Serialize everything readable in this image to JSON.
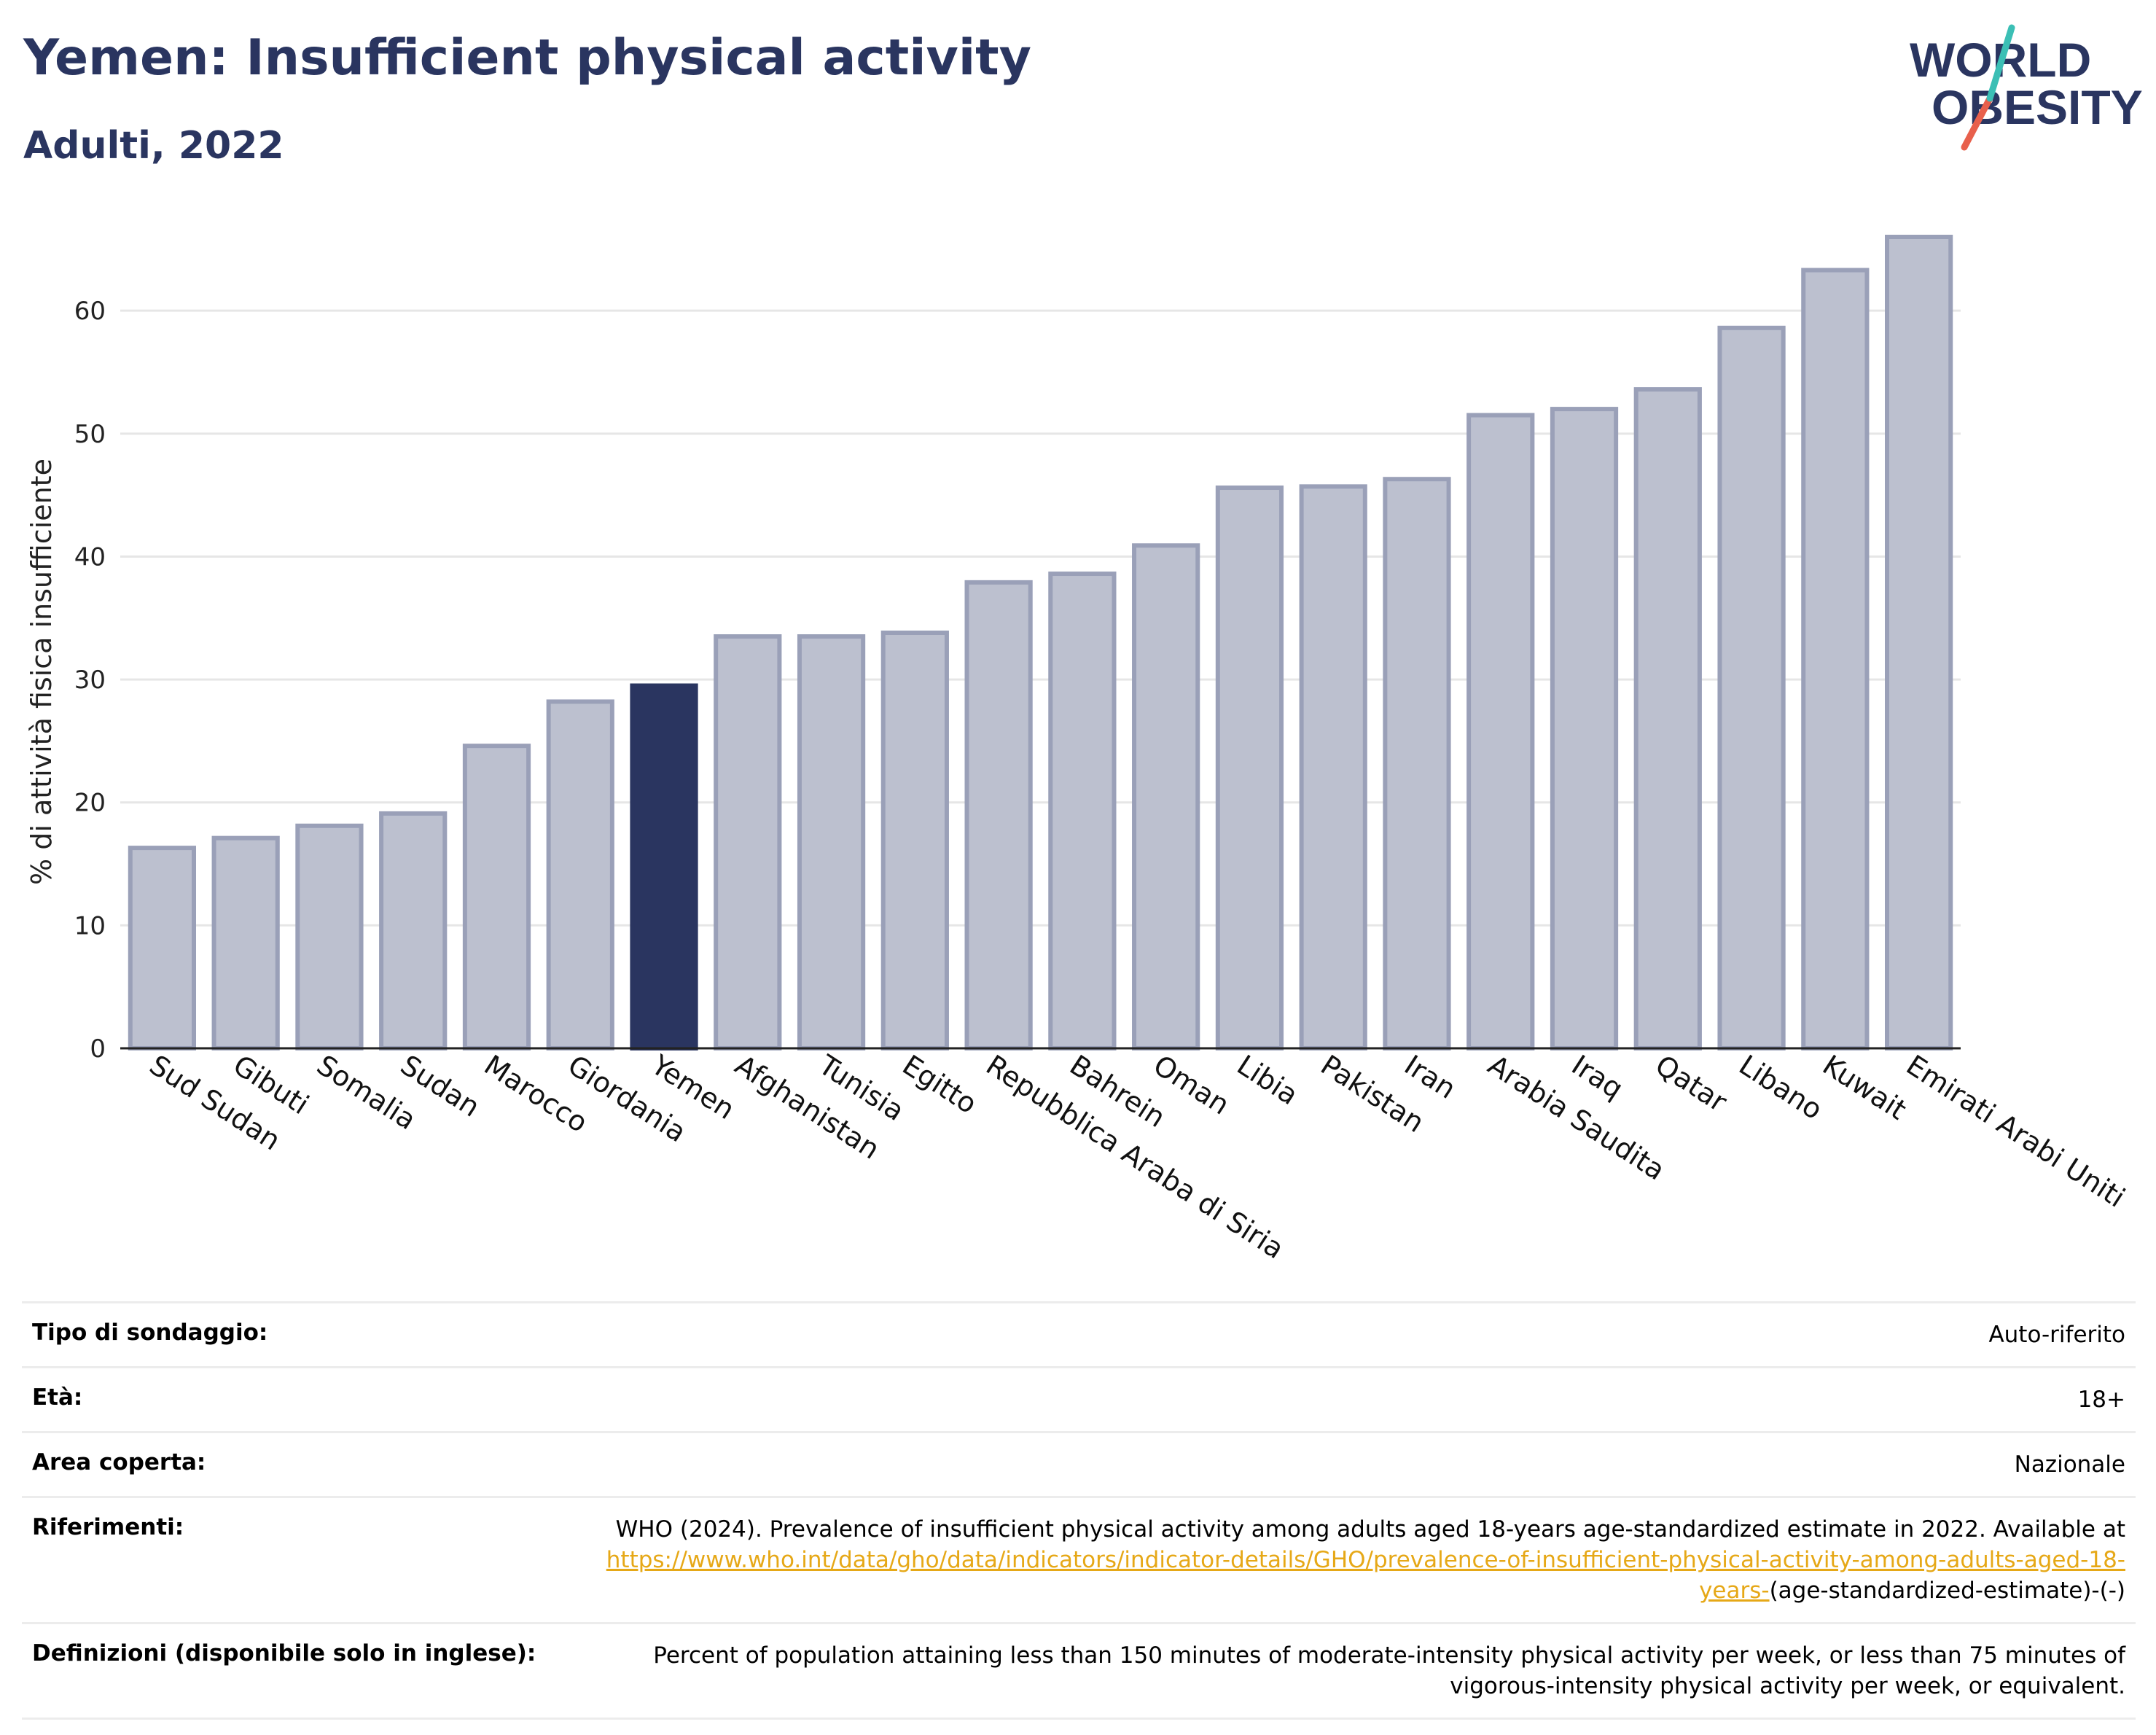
{
  "header": {
    "title": "Yemen: Insufficient physical activity",
    "subtitle": "Adulti, 2022"
  },
  "logo": {
    "line1": "WORLD",
    "line2": "OBESITY",
    "colors": {
      "text": "#2a3560",
      "slash_red": "#e8604c",
      "slash_teal": "#3bbfb5"
    }
  },
  "colors": {
    "highlight": "#2a3560",
    "bar": "#bcc0cf",
    "bar_edge": "#9aa0b8",
    "grid": "#e6e6e6",
    "link": "#e6a817"
  },
  "chart_data": {
    "type": "bar",
    "ylabel": "% di attività fisica insufficiente",
    "xlabel": "",
    "ylim": [
      0,
      66
    ],
    "yticks": [
      0,
      10,
      20,
      30,
      40,
      50,
      60
    ],
    "grid": true,
    "highlight": "Yemen",
    "categories": [
      "Sud Sudan",
      "Gibuti",
      "Somalia",
      "Sudan",
      "Marocco",
      "Giordania",
      "Yemen",
      "Afghanistan",
      "Tunisia",
      "Egitto",
      "Repubblica Araba di Siria",
      "Bahrein",
      "Oman",
      "Libia",
      "Pakistan",
      "Iran",
      "Arabia Saudita",
      "Iraq",
      "Qatar",
      "Libano",
      "Kuwait",
      "Emirati Arabi Uniti"
    ],
    "values": [
      16.3,
      17.1,
      18.1,
      19.1,
      24.6,
      28.2,
      29.5,
      33.5,
      33.5,
      33.8,
      37.9,
      38.6,
      40.9,
      45.6,
      45.7,
      46.3,
      51.5,
      52.0,
      53.6,
      58.6,
      63.3,
      66.0
    ]
  },
  "meta": [
    {
      "label": "Tipo di sondaggio:",
      "value": "Auto-riferito"
    },
    {
      "label": "Età:",
      "value": "18+"
    },
    {
      "label": "Area coperta:",
      "value": "Nazionale"
    },
    {
      "label": "Riferimenti:",
      "value_pre": "WHO (2024). Prevalence of insufficient physical activity among adults aged 18-years age-standardized estimate in 2022. Available at",
      "link": "https://www.who.int/data/gho/data/indicators/indicator-details/GHO/prevalence-of-insufficient-physical-activity-among-adults-aged-18-years-",
      "value_post": "(age-standardized-estimate)-(-)"
    },
    {
      "label": "Definizioni (disponibile solo in inglese):",
      "value": "Percent of population attaining less than 150 minutes of moderate-intensity physical activity per week, or less than 75 minutes of vigorous-intensity physical activity per week, or equivalent."
    }
  ]
}
